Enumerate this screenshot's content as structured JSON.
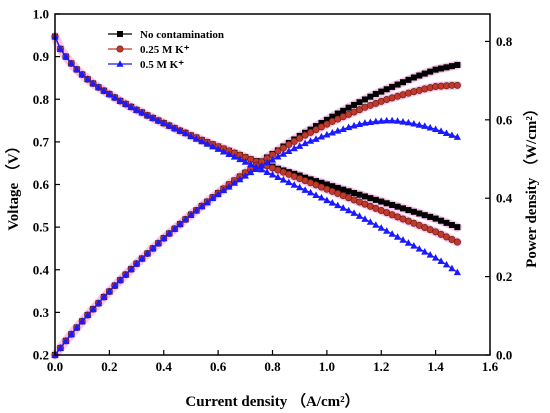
{
  "chart_data": {
    "type": "line",
    "xlabel": "Current density （A/cm²）",
    "ylabel_left": "Voltage （V）",
    "ylabel_right": "Power density （W/cm²）",
    "xlim": [
      0.0,
      1.6
    ],
    "ylim_left": [
      0.2,
      1.0
    ],
    "ylim_right": [
      0.0,
      0.87
    ],
    "x_ticks": [
      "0.0",
      "0.2",
      "0.4",
      "0.6",
      "0.8",
      "1.0",
      "1.2",
      "1.4",
      "1.6"
    ],
    "y_left_ticks": [
      "0.2",
      "0.3",
      "0.4",
      "0.5",
      "0.6",
      "0.7",
      "0.8",
      "0.9",
      "1.0"
    ],
    "y_right_ticks": [
      "0.0",
      "0.2",
      "0.4",
      "0.6",
      "0.8"
    ],
    "grid": false,
    "legend_position": "top-left",
    "x": [
      0.0,
      0.02,
      0.04,
      0.06,
      0.08,
      0.1,
      0.12,
      0.14,
      0.16,
      0.18,
      0.2,
      0.22,
      0.24,
      0.26,
      0.28,
      0.3,
      0.32,
      0.34,
      0.36,
      0.38,
      0.4,
      0.42,
      0.44,
      0.46,
      0.48,
      0.5,
      0.52,
      0.54,
      0.56,
      0.58,
      0.6,
      0.62,
      0.64,
      0.66,
      0.68,
      0.7,
      0.72,
      0.74,
      0.76,
      0.78,
      0.8,
      0.82,
      0.84,
      0.86,
      0.88,
      0.9,
      0.92,
      0.94,
      0.96,
      0.98,
      1.0,
      1.02,
      1.04,
      1.06,
      1.08,
      1.1,
      1.12,
      1.14,
      1.16,
      1.18,
      1.2,
      1.22,
      1.24,
      1.26,
      1.28,
      1.3,
      1.32,
      1.34,
      1.36,
      1.38,
      1.4,
      1.42,
      1.44,
      1.46,
      1.48
    ],
    "series": [
      {
        "name": "No contamination",
        "color": "#000000",
        "marker": "square",
        "highlight": "#f7c6ec",
        "voltage": [
          0.947,
          0.918,
          0.9,
          0.884,
          0.87,
          0.858,
          0.847,
          0.837,
          0.828,
          0.82,
          0.812,
          0.804,
          0.796,
          0.789,
          0.782,
          0.775,
          0.769,
          0.762,
          0.756,
          0.75,
          0.744,
          0.738,
          0.732,
          0.726,
          0.721,
          0.715,
          0.71,
          0.704,
          0.699,
          0.694,
          0.689,
          0.684,
          0.679,
          0.674,
          0.669,
          0.664,
          0.659,
          0.655,
          0.65,
          0.646,
          0.642,
          0.637,
          0.633,
          0.629,
          0.625,
          0.621,
          0.616,
          0.612,
          0.608,
          0.604,
          0.6,
          0.596,
          0.592,
          0.588,
          0.584,
          0.58,
          0.576,
          0.572,
          0.568,
          0.564,
          0.56,
          0.556,
          0.552,
          0.548,
          0.544,
          0.54,
          0.536,
          0.532,
          0.528,
          0.524,
          0.52,
          0.515,
          0.51,
          0.505,
          0.5
        ],
        "power": [
          0.0,
          0.018,
          0.036,
          0.053,
          0.07,
          0.086,
          0.102,
          0.117,
          0.132,
          0.148,
          0.162,
          0.177,
          0.191,
          0.205,
          0.219,
          0.233,
          0.246,
          0.259,
          0.272,
          0.285,
          0.298,
          0.31,
          0.322,
          0.334,
          0.346,
          0.358,
          0.369,
          0.38,
          0.391,
          0.402,
          0.413,
          0.424,
          0.435,
          0.445,
          0.455,
          0.465,
          0.475,
          0.485,
          0.494,
          0.504,
          0.513,
          0.522,
          0.532,
          0.541,
          0.55,
          0.559,
          0.567,
          0.575,
          0.584,
          0.592,
          0.6,
          0.608,
          0.616,
          0.623,
          0.631,
          0.638,
          0.645,
          0.652,
          0.659,
          0.666,
          0.672,
          0.678,
          0.684,
          0.69,
          0.696,
          0.702,
          0.708,
          0.713,
          0.718,
          0.723,
          0.728,
          0.731,
          0.734,
          0.737,
          0.74
        ]
      },
      {
        "name": "0.25 M K⁺",
        "color": "#c0392b",
        "marker": "circle",
        "highlight": "#f7c6ec",
        "voltage": [
          0.947,
          0.918,
          0.9,
          0.884,
          0.87,
          0.858,
          0.847,
          0.837,
          0.828,
          0.82,
          0.812,
          0.804,
          0.796,
          0.789,
          0.782,
          0.775,
          0.769,
          0.762,
          0.756,
          0.75,
          0.744,
          0.738,
          0.732,
          0.726,
          0.721,
          0.715,
          0.71,
          0.704,
          0.699,
          0.694,
          0.689,
          0.684,
          0.679,
          0.674,
          0.669,
          0.664,
          0.659,
          0.654,
          0.649,
          0.644,
          0.639,
          0.634,
          0.629,
          0.624,
          0.619,
          0.614,
          0.609,
          0.604,
          0.599,
          0.594,
          0.589,
          0.584,
          0.579,
          0.574,
          0.569,
          0.564,
          0.559,
          0.554,
          0.549,
          0.544,
          0.539,
          0.534,
          0.529,
          0.524,
          0.519,
          0.514,
          0.509,
          0.504,
          0.499,
          0.494,
          0.489,
          0.483,
          0.477,
          0.471,
          0.465
        ],
        "power": [
          0.0,
          0.018,
          0.036,
          0.053,
          0.07,
          0.086,
          0.102,
          0.117,
          0.132,
          0.148,
          0.162,
          0.177,
          0.191,
          0.205,
          0.219,
          0.233,
          0.246,
          0.259,
          0.272,
          0.285,
          0.298,
          0.31,
          0.322,
          0.334,
          0.346,
          0.358,
          0.369,
          0.38,
          0.391,
          0.402,
          0.413,
          0.424,
          0.435,
          0.445,
          0.455,
          0.465,
          0.474,
          0.484,
          0.493,
          0.502,
          0.511,
          0.52,
          0.528,
          0.537,
          0.545,
          0.553,
          0.561,
          0.568,
          0.575,
          0.582,
          0.589,
          0.596,
          0.602,
          0.608,
          0.614,
          0.62,
          0.626,
          0.632,
          0.637,
          0.642,
          0.647,
          0.652,
          0.656,
          0.66,
          0.664,
          0.668,
          0.672,
          0.675,
          0.679,
          0.682,
          0.685,
          0.686,
          0.687,
          0.688,
          0.688
        ]
      },
      {
        "name": "0.5 M K⁺",
        "color": "#1a1aff",
        "marker": "triangle",
        "highlight": "none",
        "voltage": [
          0.947,
          0.918,
          0.9,
          0.884,
          0.87,
          0.858,
          0.847,
          0.837,
          0.828,
          0.82,
          0.812,
          0.804,
          0.796,
          0.789,
          0.782,
          0.775,
          0.769,
          0.762,
          0.756,
          0.75,
          0.744,
          0.738,
          0.732,
          0.726,
          0.72,
          0.713,
          0.707,
          0.701,
          0.695,
          0.689,
          0.683,
          0.677,
          0.671,
          0.665,
          0.659,
          0.653,
          0.647,
          0.641,
          0.635,
          0.629,
          0.623,
          0.617,
          0.611,
          0.605,
          0.599,
          0.593,
          0.587,
          0.581,
          0.575,
          0.569,
          0.563,
          0.557,
          0.551,
          0.545,
          0.539,
          0.533,
          0.526,
          0.519,
          0.512,
          0.505,
          0.498,
          0.491,
          0.484,
          0.477,
          0.47,
          0.463,
          0.456,
          0.449,
          0.442,
          0.435,
          0.428,
          0.42,
          0.412,
          0.403,
          0.394
        ],
        "power": [
          0.0,
          0.018,
          0.036,
          0.053,
          0.07,
          0.086,
          0.102,
          0.117,
          0.132,
          0.148,
          0.162,
          0.177,
          0.191,
          0.205,
          0.219,
          0.233,
          0.246,
          0.259,
          0.272,
          0.285,
          0.298,
          0.31,
          0.322,
          0.334,
          0.346,
          0.357,
          0.368,
          0.379,
          0.389,
          0.4,
          0.41,
          0.42,
          0.429,
          0.439,
          0.448,
          0.457,
          0.466,
          0.474,
          0.483,
          0.491,
          0.498,
          0.506,
          0.513,
          0.52,
          0.527,
          0.533,
          0.54,
          0.546,
          0.551,
          0.557,
          0.562,
          0.567,
          0.572,
          0.576,
          0.581,
          0.585,
          0.589,
          0.592,
          0.594,
          0.596,
          0.597,
          0.598,
          0.598,
          0.597,
          0.595,
          0.593,
          0.59,
          0.587,
          0.584,
          0.58,
          0.576,
          0.571,
          0.566,
          0.561,
          0.556
        ]
      }
    ]
  }
}
